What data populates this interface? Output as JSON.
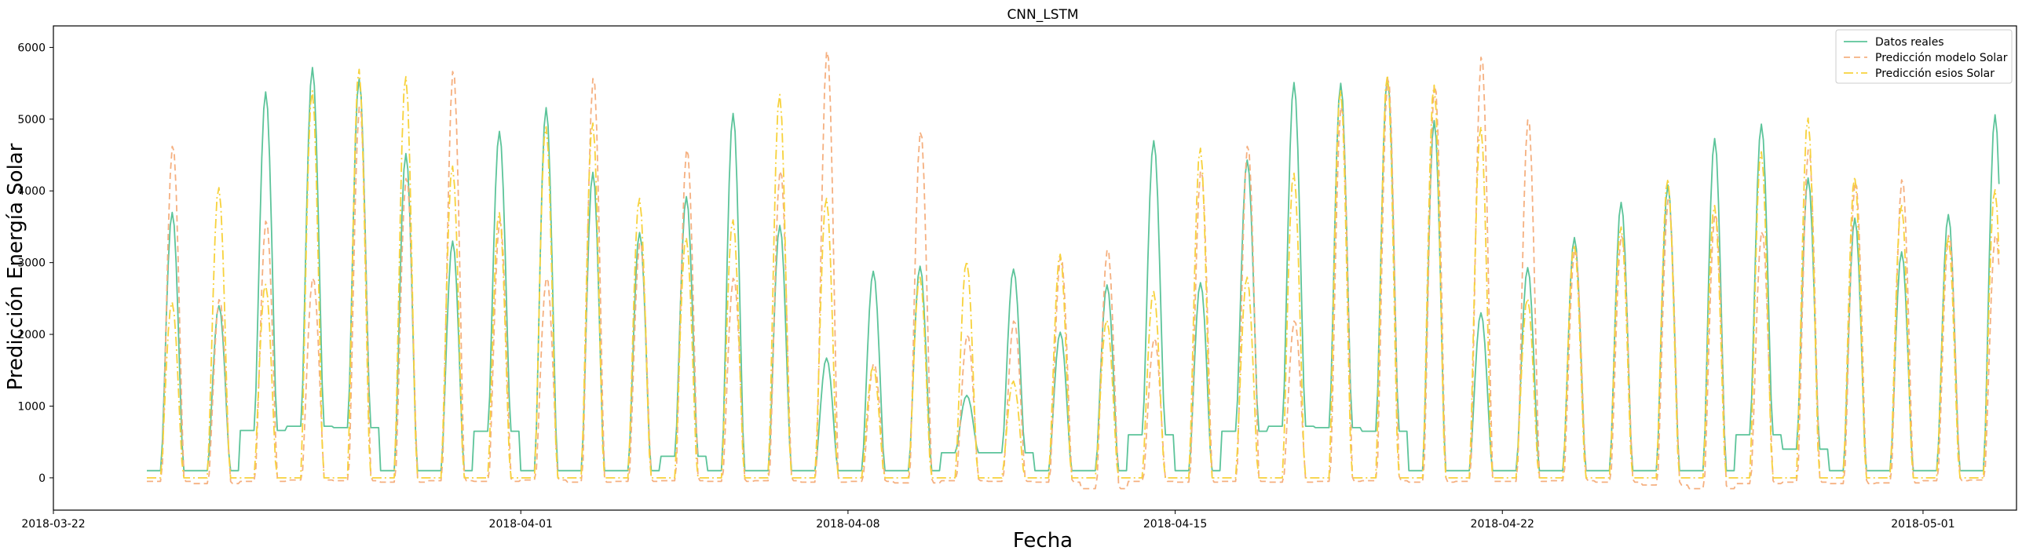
{
  "chart_data": {
    "type": "line",
    "title": "CNN_LSTM",
    "xlabel": "Fecha",
    "ylabel": "Predicción Energía Solar",
    "xlim": [
      "2018-03-22",
      "2018-05-03"
    ],
    "ylim": [
      -450,
      6300
    ],
    "x_ticks": [
      "2018-03-22",
      "2018-04-01",
      "2018-04-08",
      "2018-04-15",
      "2018-04-22",
      "2018-05-01"
    ],
    "y_ticks": [
      "0",
      "1000",
      "2000",
      "3000",
      "4000",
      "5000",
      "6000"
    ],
    "grid": false,
    "legend_position": "top-right",
    "days": [
      "2018-03-24",
      "2018-03-25",
      "2018-03-26",
      "2018-03-27",
      "2018-03-28",
      "2018-03-29",
      "2018-03-30",
      "2018-03-31",
      "2018-04-01",
      "2018-04-02",
      "2018-04-03",
      "2018-04-04",
      "2018-04-05",
      "2018-04-06",
      "2018-04-07",
      "2018-04-08",
      "2018-04-09",
      "2018-04-10",
      "2018-04-11",
      "2018-04-12",
      "2018-04-13",
      "2018-04-14",
      "2018-04-15",
      "2018-04-16",
      "2018-04-17",
      "2018-04-18",
      "2018-04-19",
      "2018-04-20",
      "2018-04-21",
      "2018-04-22",
      "2018-04-23",
      "2018-04-24",
      "2018-04-25",
      "2018-04-26",
      "2018-04-27",
      "2018-04-28",
      "2018-04-29",
      "2018-04-30",
      "2018-05-01",
      "2018-05-02"
    ],
    "series": [
      {
        "name": "Datos reales",
        "color": "#5cc49a",
        "dash": "solid",
        "daily_peak": [
          3700,
          2400,
          5380,
          5720,
          5560,
          4520,
          3300,
          4830,
          5160,
          4260,
          3420,
          3920,
          5080,
          3520,
          1670,
          2880,
          2950,
          1150,
          2910,
          2030,
          2690,
          4700,
          2720,
          4430,
          5510,
          5500,
          5580,
          4980,
          2300,
          2930,
          3350,
          3840,
          4080,
          4730,
          4930,
          4180,
          3620,
          3150,
          3670,
          5060
        ],
        "daily_base": [
          100,
          100,
          660,
          720,
          700,
          100,
          100,
          650,
          100,
          100,
          100,
          300,
          100,
          100,
          100,
          100,
          100,
          350,
          350,
          100,
          100,
          600,
          100,
          650,
          720,
          700,
          650,
          100,
          100,
          100,
          100,
          100,
          100,
          100,
          600,
          400,
          100,
          100,
          100,
          100
        ]
      },
      {
        "name": "Predicción modelo Solar",
        "color": "#f5b080",
        "dash": "dashed",
        "daily_peak": [
          4650,
          2500,
          3600,
          2800,
          5200,
          4200,
          5700,
          3600,
          2800,
          5600,
          3300,
          4600,
          2800,
          4300,
          5980,
          1600,
          4850,
          2000,
          2200,
          3100,
          3200,
          1950,
          4300,
          4650,
          2200,
          5200,
          5600,
          5500,
          5900,
          5020,
          3200,
          3400,
          3900,
          3700,
          3450,
          4600,
          4150,
          4180,
          3400,
          3400
        ],
        "daily_base": [
          -50,
          -80,
          -50,
          -30,
          -40,
          -60,
          -40,
          -50,
          -30,
          -60,
          -50,
          -40,
          -50,
          -40,
          -60,
          -50,
          -70,
          -40,
          -50,
          -60,
          -150,
          -50,
          -60,
          -50,
          -60,
          -50,
          -40,
          -60,
          -50,
          -50,
          -40,
          -60,
          -100,
          -150,
          -80,
          -60,
          -80,
          -70,
          -40,
          -30
        ]
      },
      {
        "name": "Predicción esios Solar",
        "color": "#f7d23c",
        "dash": "dashdot",
        "daily_peak": [
          2450,
          4050,
          2700,
          5400,
          5700,
          5600,
          4350,
          3700,
          4900,
          4950,
          3900,
          3350,
          3600,
          5350,
          3900,
          1550,
          2800,
          3020,
          1350,
          3120,
          2200,
          2600,
          4600,
          2800,
          4250,
          5400,
          5620,
          5480,
          4900,
          2500,
          3250,
          3500,
          4170,
          3800,
          4550,
          5020,
          4200,
          3800,
          3350,
          4020
        ],
        "daily_base": [
          0,
          0,
          0,
          0,
          0,
          0,
          0,
          0,
          0,
          0,
          0,
          0,
          0,
          0,
          0,
          0,
          0,
          0,
          0,
          0,
          0,
          0,
          0,
          0,
          0,
          0,
          0,
          0,
          0,
          0,
          0,
          0,
          0,
          0,
          0,
          0,
          0,
          0,
          0,
          0
        ]
      }
    ]
  }
}
